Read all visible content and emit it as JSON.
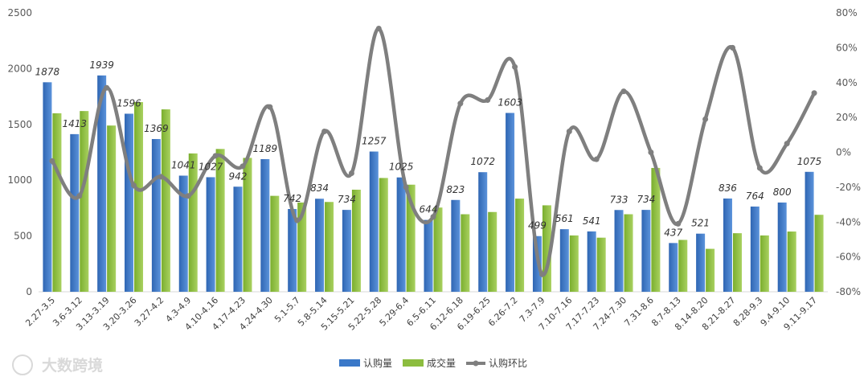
{
  "watermark": {
    "text": "大数跨境"
  },
  "legend": {
    "items": [
      "认购量",
      "成交量",
      "认购环比"
    ]
  },
  "colors": {
    "subscription": "#3a78c8",
    "deal": "#8cbd3f",
    "mom": "#7f7f7f"
  },
  "chart_data": {
    "type": "bar",
    "categories": [
      "2.27-3.5",
      "3.6-3.12",
      "3.13-3.19",
      "3.20-3.26",
      "3.27-4.2",
      "4.3-4.9",
      "4.10-4.16",
      "4.17-4.23",
      "4.24-4.30",
      "5.1-5.7",
      "5.8-5.14",
      "5.15-5.21",
      "5.22-5.28",
      "5.29-6.4",
      "6.5-6.11",
      "6.12-6.18",
      "6.19-6.25",
      "6.26-7.2",
      "7.3-7.9",
      "7.10-7.16",
      "7.17-7.23",
      "7.24-7.30",
      "7.31-8.6",
      "8.7-8.13",
      "8.14-8.20",
      "8.21-8.27",
      "8.28-9.3",
      "9.4-9.10",
      "9.11-9.17"
    ],
    "series": [
      {
        "name": "认购量",
        "type": "bar",
        "axis": "left",
        "values": [
          1878,
          1413,
          1939,
          1596,
          1369,
          1041,
          1027,
          942,
          1189,
          742,
          834,
          734,
          1257,
          1025,
          644,
          823,
          1072,
          1603,
          499,
          561,
          541,
          733,
          734,
          437,
          521,
          836,
          764,
          800,
          1075
        ]
      },
      {
        "name": "成交量",
        "type": "bar",
        "axis": "left",
        "values": [
          1600,
          1620,
          1490,
          1700,
          1635,
          1240,
          1280,
          1200,
          860,
          800,
          805,
          915,
          1020,
          960,
          755,
          695,
          715,
          835,
          775,
          505,
          485,
          695,
          1110,
          465,
          385,
          525,
          505,
          540,
          690
        ]
      },
      {
        "name": "认购环比",
        "type": "line",
        "axis": "right",
        "unit": "%",
        "values": [
          -5,
          -25,
          37,
          -19,
          -14,
          -25,
          -2,
          -8,
          26,
          -39,
          12,
          -12,
          71,
          -20,
          -37,
          28,
          30,
          49,
          -70,
          12,
          -4,
          35,
          0,
          -41,
          19,
          60,
          -9,
          5,
          34
        ]
      }
    ],
    "data_labels": [
      "1878",
      "1413",
      "1939",
      "1596",
      "1369",
      "1041",
      "1027",
      "942",
      "1189",
      "742",
      "834",
      "734",
      "1257",
      "1025",
      "644",
      "823",
      "1072",
      "1603",
      "499",
      "561",
      "541",
      "733",
      "734",
      "437",
      "521",
      "836",
      "764",
      "800",
      "1075"
    ],
    "left_axis": {
      "ylim": [
        0,
        2500
      ],
      "ticks": [
        "0",
        "500",
        "1000",
        "1500",
        "2000",
        "2500"
      ]
    },
    "right_axis": {
      "ylim": [
        -80,
        80
      ],
      "ticks": [
        "-80%",
        "-60%",
        "-40%",
        "-20%",
        "0%",
        "20%",
        "40%",
        "60%",
        "80%"
      ]
    },
    "grid": false,
    "legend_position": "bottom-center"
  }
}
